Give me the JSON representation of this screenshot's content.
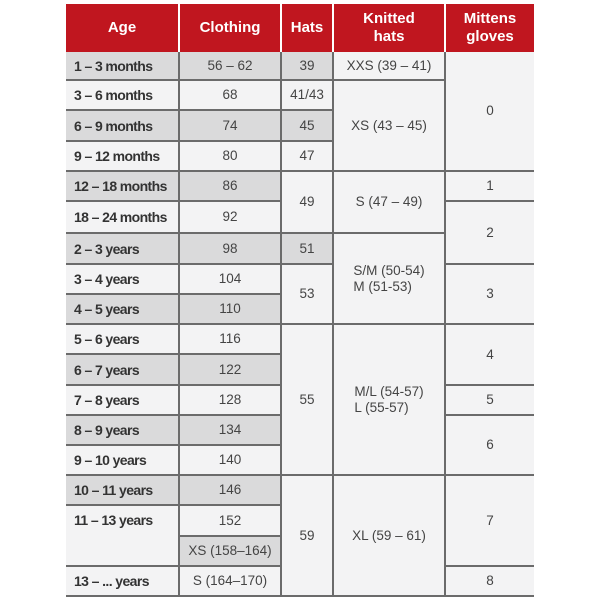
{
  "colors": {
    "header": "#c0161f",
    "shaded": "#dadadb",
    "light": "#f3f3f4",
    "border": "#6b6b6b"
  },
  "headers": [
    "Age",
    "Clothing",
    "Hats",
    "Knitted\nhats",
    "Mittens\ngloves"
  ],
  "age": [
    "1 – 3 months",
    "3 – 6 months",
    "6 – 9 months",
    "9 – 12 months",
    "12 – 18 months",
    "18 – 24 months",
    "2 – 3 years",
    "3 – 4 years",
    "4 – 5 years",
    "5 – 6 years",
    "6 – 7 years",
    "7 – 8 years",
    "8 – 9 years",
    "9 – 10 years",
    "10 – 11 years",
    "11 – 13 years",
    "13 – ... years"
  ],
  "clothing": [
    "56 – 62",
    "68",
    "74",
    "80",
    "86",
    "92",
    "98",
    "104",
    "110",
    "116",
    "122",
    "128",
    "134",
    "140",
    "146",
    "152",
    "XS (158–164)",
    "S (164–170)"
  ],
  "hats": [
    "39",
    "41/43",
    "45",
    "47",
    "49",
    "51",
    "53",
    "55",
    "59"
  ],
  "knitted_hats": [
    "XXS (39 – 41)",
    "XS (43 – 45)",
    "S (47 – 49)",
    "S/M (50-54)\nM (51-53)",
    "M/L (54-57)\nL (55-57)",
    "XL (59 – 61)"
  ],
  "mittens_gloves": [
    "0",
    "1",
    "2",
    "3",
    "4",
    "5",
    "6",
    "7",
    "8"
  ]
}
